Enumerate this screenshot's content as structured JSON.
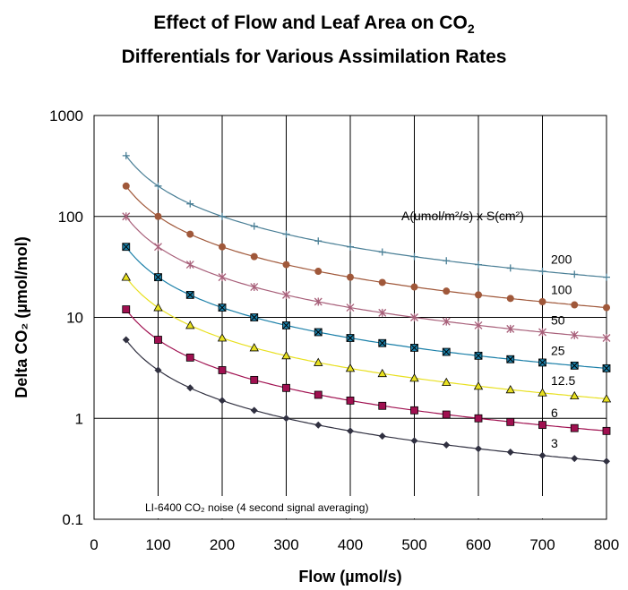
{
  "chart_data": {
    "type": "line",
    "title_line1_main": "Effect of Flow and Leaf Area on CO",
    "title_line1_sub": "2",
    "title_line2": "Differentials for Various Assimilation Rates",
    "xlabel": "Flow (µmol/s)",
    "ylabel": "Delta CO₂ (µmol/mol)",
    "yscale": "log",
    "xlim": [
      0,
      800
    ],
    "ylim": [
      0.1,
      1000
    ],
    "grid": true,
    "xticks": [
      "0",
      "100",
      "200",
      "300",
      "400",
      "500",
      "600",
      "700",
      "800"
    ],
    "yticks": [
      "0.1",
      "1",
      "10",
      "100",
      "1000"
    ],
    "legend_title": "A(umol/m²/s) x S(cm²)",
    "noise_label": "LI-6400 CO₂ noise (4 second signal averaging)",
    "noise_level": 0.1,
    "x": [
      50,
      100,
      150,
      200,
      250,
      300,
      350,
      400,
      450,
      500,
      550,
      600,
      650,
      700,
      750,
      800
    ],
    "series": [
      {
        "name": "200",
        "color": "#4a7f96",
        "marker": "plus",
        "values": [
          400,
          200,
          133.3,
          100,
          80,
          66.7,
          57.1,
          50,
          44.4,
          40,
          36.4,
          33.3,
          30.8,
          28.6,
          26.7,
          25
        ]
      },
      {
        "name": "100",
        "color": "#a0583a",
        "marker": "circle",
        "values": [
          200,
          100,
          66.7,
          50,
          40,
          33.3,
          28.6,
          25,
          22.2,
          20,
          18.2,
          16.7,
          15.4,
          14.3,
          13.3,
          12.5
        ]
      },
      {
        "name": "50",
        "color": "#a8607a",
        "marker": "star",
        "values": [
          100,
          50,
          33.3,
          25,
          20,
          16.7,
          14.3,
          12.5,
          11.1,
          10,
          9.09,
          8.33,
          7.69,
          7.14,
          6.67,
          6.25
        ]
      },
      {
        "name": "25",
        "color": "#1a7fa8",
        "marker": "xsquare",
        "values": [
          50,
          25,
          16.7,
          12.5,
          10,
          8.33,
          7.14,
          6.25,
          5.56,
          5,
          4.55,
          4.17,
          3.85,
          3.57,
          3.33,
          3.13
        ]
      },
      {
        "name": "12.5",
        "color": "#e8e020",
        "marker": "triangle",
        "values": [
          25,
          12.5,
          8.33,
          6.25,
          5,
          4.17,
          3.57,
          3.13,
          2.78,
          2.5,
          2.27,
          2.08,
          1.92,
          1.79,
          1.67,
          1.56
        ]
      },
      {
        "name": "6",
        "color": "#a01050",
        "marker": "square",
        "values": [
          12,
          6,
          4,
          3,
          2.4,
          2,
          1.71,
          1.5,
          1.33,
          1.2,
          1.09,
          1,
          0.92,
          0.86,
          0.8,
          0.75
        ]
      },
      {
        "name": "3",
        "color": "#303040",
        "marker": "diamond",
        "values": [
          6,
          3,
          2,
          1.5,
          1.2,
          1,
          0.857,
          0.75,
          0.667,
          0.6,
          0.545,
          0.5,
          0.462,
          0.429,
          0.4,
          0.375
        ]
      }
    ]
  }
}
